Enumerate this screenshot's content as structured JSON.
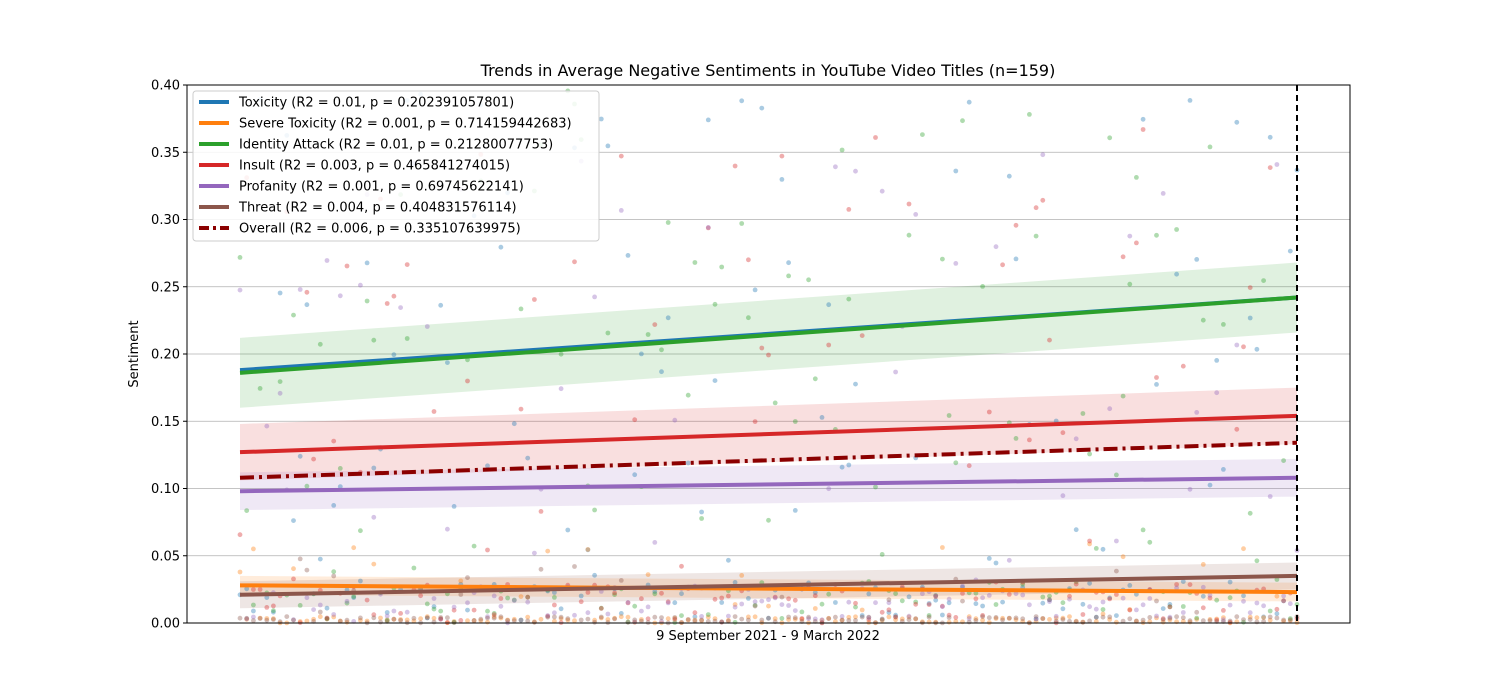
{
  "chart_data": {
    "type": "scatter",
    "title": "Trends in Average Negative Sentiments in YouTube Video Titles (n=159)",
    "xlabel": "9 September 2021 - 9 March 2022",
    "ylabel": "Sentiment",
    "ylim": [
      0,
      0.4
    ],
    "yticks": [
      "0.00",
      "0.05",
      "0.10",
      "0.15",
      "0.20",
      "0.25",
      "0.30",
      "0.35",
      "0.40"
    ],
    "grid": "horizontal",
    "legend_position": "top-left",
    "vertical_marker": "dashed line at the last video",
    "n": 159,
    "series": [
      {
        "name": "Toxicity (R2 = 0.01, p = 0.202391057801)",
        "color": "#1f77b4",
        "trend_start": 0.188,
        "trend_end": 0.242,
        "band": 0.025,
        "band_shown": false
      },
      {
        "name": "Severe Toxicity (R2 = 0.001, p = 0.714159442683)",
        "color": "#ff7f0e",
        "trend_start": 0.028,
        "trend_end": 0.023,
        "band": 0.007,
        "band_shown": true
      },
      {
        "name": "Identity Attack (R2 = 0.01, p = 0.21280077753)",
        "color": "#2ca02c",
        "trend_start": 0.186,
        "trend_end": 0.242,
        "band": 0.026,
        "band_shown": true
      },
      {
        "name": "Insult (R2 = 0.003, p = 0.465841274015)",
        "color": "#d62728",
        "trend_start": 0.127,
        "trend_end": 0.154,
        "band": 0.021,
        "band_shown": true
      },
      {
        "name": "Profanity (R2 = 0.001, p = 0.69745622141)",
        "color": "#9467bd",
        "trend_start": 0.098,
        "trend_end": 0.108,
        "band": 0.014,
        "band_shown": true
      },
      {
        "name": "Threat (R2 = 0.004, p = 0.404831576114)",
        "color": "#8c564b",
        "trend_start": 0.021,
        "trend_end": 0.035,
        "band": 0.01,
        "band_shown": true
      },
      {
        "name": "Overall (R2 = 0.006, p = 0.335107639975)",
        "color": "#8b0000",
        "trend_start": 0.108,
        "trend_end": 0.134,
        "band": 0,
        "band_shown": false,
        "dashed": true
      }
    ]
  }
}
